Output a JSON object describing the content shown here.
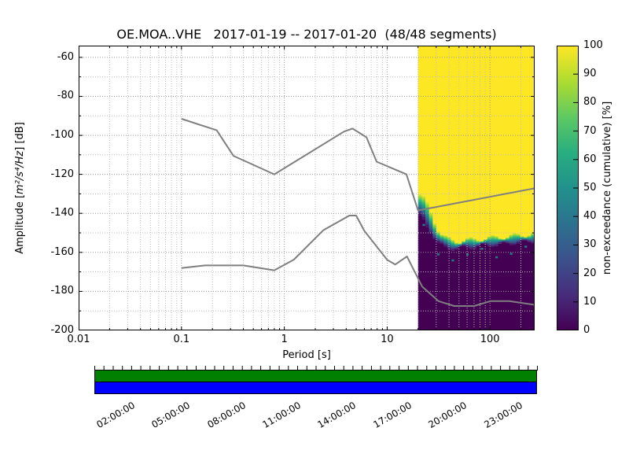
{
  "title": "OE.MOA..VHE   2017-01-19 -- 2017-01-20  (48/48 segments)",
  "axes": {
    "xlabel": "Period [s]",
    "ylabel": {
      "prefix": "Amplitude [",
      "math": "m²/s⁴/Hz",
      "suffix": "] [dB]"
    }
  },
  "colorbar": {
    "label": "non-exceedance (cumulative) [%]",
    "ticks": [
      0,
      10,
      20,
      30,
      40,
      50,
      60,
      70,
      80,
      90,
      100
    ],
    "colormap_stops": [
      {
        "pct": 0,
        "color": "#440154"
      },
      {
        "pct": 12.5,
        "color": "#472d7b"
      },
      {
        "pct": 25,
        "color": "#3b528b"
      },
      {
        "pct": 37.5,
        "color": "#2c728e"
      },
      {
        "pct": 50,
        "color": "#21918c"
      },
      {
        "pct": 62.5,
        "color": "#28ae80"
      },
      {
        "pct": 75,
        "color": "#5ec962"
      },
      {
        "pct": 87.5,
        "color": "#addc30"
      },
      {
        "pct": 100,
        "color": "#fde725"
      }
    ]
  },
  "chart_data": {
    "type": "heatmap",
    "title": "OE.MOA..VHE 2017-01-19 -- 2017-01-20 (48/48 segments)",
    "xlabel": "Period [s]",
    "ylabel": "Amplitude [m^2/s^4/Hz] [dB]",
    "x_scale": "log",
    "xlim": [
      0.01,
      272
    ],
    "ylim": [
      -200,
      -54
    ],
    "grid": true,
    "x_major_ticks": [
      0.01,
      0.1,
      1,
      10,
      100
    ],
    "x_tick_labels": [
      "0.01",
      "0.1",
      "1",
      "10",
      "100"
    ],
    "y_major_ticks": [
      -200,
      -180,
      -160,
      -140,
      -120,
      -100,
      -80,
      -60
    ],
    "colorbar_label": "non-exceedance (cumulative) [%]",
    "colorbar_range": [
      0,
      100
    ],
    "noise_model_high_db": [
      [
        0.1,
        -91.5
      ],
      [
        0.22,
        -97.4
      ],
      [
        0.32,
        -110.5
      ],
      [
        0.8,
        -120.0
      ],
      [
        3.8,
        -98.1
      ],
      [
        4.6,
        -96.5
      ],
      [
        6.3,
        -101.0
      ],
      [
        7.9,
        -113.5
      ],
      [
        15.4,
        -120.0
      ],
      [
        20.0,
        -138.5
      ],
      [
        354.8,
        -126.0
      ]
    ],
    "noise_model_low_db": [
      [
        0.1,
        -168.0
      ],
      [
        0.17,
        -166.7
      ],
      [
        0.4,
        -166.7
      ],
      [
        0.8,
        -169.2
      ],
      [
        1.24,
        -163.7
      ],
      [
        2.4,
        -148.6
      ],
      [
        4.3,
        -141.1
      ],
      [
        5.0,
        -141.1
      ],
      [
        6.0,
        -149.0
      ],
      [
        10.0,
        -163.8
      ],
      [
        12.0,
        -166.2
      ],
      [
        15.6,
        -162.1
      ],
      [
        21.9,
        -177.5
      ],
      [
        31.6,
        -185.0
      ],
      [
        45.0,
        -187.5
      ],
      [
        70.0,
        -187.5
      ],
      [
        101.0,
        -185.0
      ],
      [
        154.0,
        -185.0
      ],
      [
        328.0,
        -187.5
      ]
    ],
    "ppsd_region": {
      "description": "cumulative non-exceedance: 100% (yellow) above hi, 0% (dark) below lo, viridis transition between",
      "period_min": 20,
      "period_max": 272,
      "boundary": [
        {
          "p": 20,
          "hi": -129,
          "lo": -141
        },
        {
          "p": 22,
          "hi": -131,
          "lo": -143
        },
        {
          "p": 24,
          "hi": -134,
          "lo": -146
        },
        {
          "p": 26,
          "hi": -138,
          "lo": -149
        },
        {
          "p": 29,
          "hi": -144,
          "lo": -153
        },
        {
          "p": 32,
          "hi": -149,
          "lo": -156
        },
        {
          "p": 36,
          "hi": -152,
          "lo": -157.5
        },
        {
          "p": 42,
          "hi": -153.5,
          "lo": -158
        },
        {
          "p": 50,
          "hi": -154,
          "lo": -158
        },
        {
          "p": 60,
          "hi": -153.5,
          "lo": -157.5
        },
        {
          "p": 75,
          "hi": -153,
          "lo": -157
        },
        {
          "p": 95,
          "hi": -152.5,
          "lo": -156.5
        },
        {
          "p": 120,
          "hi": -152,
          "lo": -156
        },
        {
          "p": 155,
          "hi": -151.5,
          "lo": -155.5
        },
        {
          "p": 200,
          "hi": -151,
          "lo": -155
        },
        {
          "p": 272,
          "hi": -150,
          "lo": -154.5
        }
      ]
    }
  },
  "timeline": {
    "segments_total": 48,
    "segments_used": 48,
    "coverage_color": "#008000",
    "processed_color": "#0000ff",
    "hours_total": 24,
    "tick_hours": [
      2,
      5,
      8,
      11,
      14,
      17,
      20,
      23
    ],
    "tick_labels": [
      "02:00:00",
      "05:00:00",
      "08:00:00",
      "11:00:00",
      "14:00:00",
      "17:00:00",
      "20:00:00",
      "23:00:00"
    ]
  }
}
